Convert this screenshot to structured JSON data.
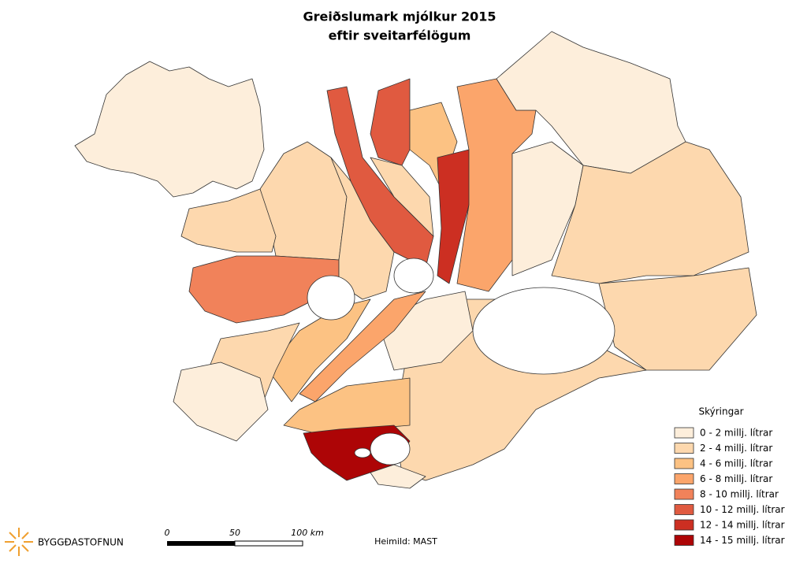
{
  "title": "Greiðslumark mjólkur 2015",
  "subtitle": "eftir sveitarfélögum",
  "legend": {
    "title": "Skýringar",
    "items": [
      {
        "label": "0 - 2 millj. lítrar",
        "color": "#fdeedb"
      },
      {
        "label": "2 - 4 millj. lítrar",
        "color": "#fdd8ae"
      },
      {
        "label": "4 - 6 millj. lítrar",
        "color": "#fcc283"
      },
      {
        "label": "6 - 8 millj. lítrar",
        "color": "#fba56b"
      },
      {
        "label": "8 - 10 millj. lítrar",
        "color": "#f1825a"
      },
      {
        "label": "10 - 12 millj. lítrar",
        "color": "#e05a40"
      },
      {
        "label": "12 - 14 millj. lítrar",
        "color": "#cc2f22"
      },
      {
        "label": "14 - 15 millj. lítrar",
        "color": "#ad0506"
      }
    ]
  },
  "scale_bar": {
    "labels": [
      "0",
      "50",
      "100 km"
    ]
  },
  "source": "Heimild: MAST",
  "logo": "BYGGÐASTOFNUN"
}
